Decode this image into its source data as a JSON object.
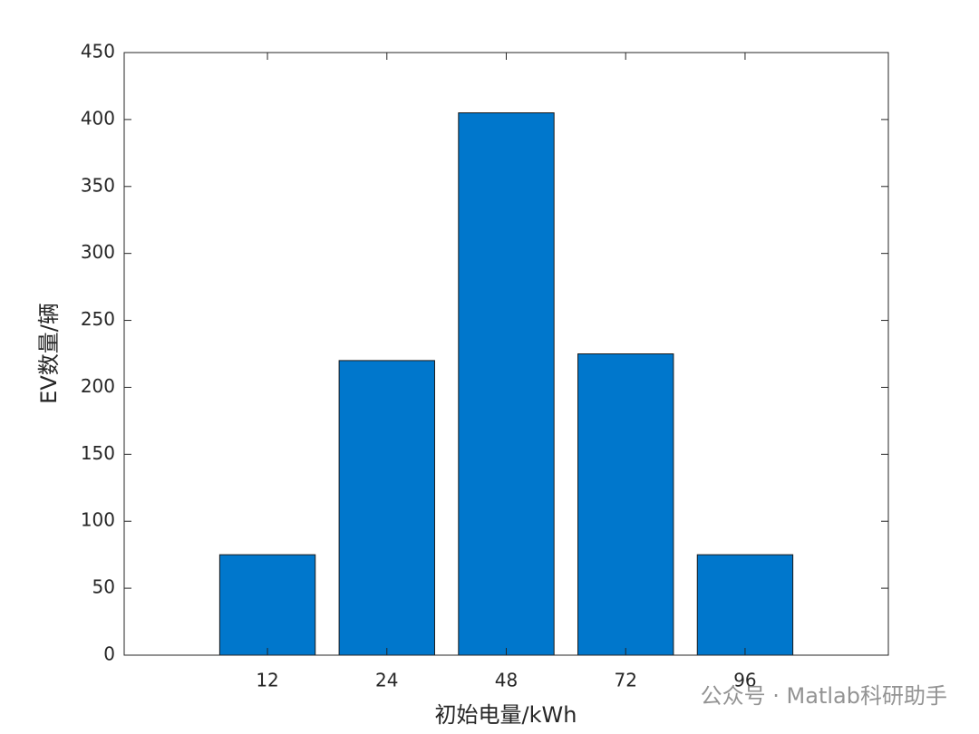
{
  "chart_data": {
    "type": "bar",
    "xlabel": "初始电量/kWh",
    "ylabel": "EV数量/辆",
    "categories": [
      "12",
      "24",
      "48",
      "72",
      "96"
    ],
    "values": [
      75,
      220,
      405,
      225,
      75
    ],
    "color": "#0077cc",
    "ylim": [
      0,
      450
    ],
    "yticks": [
      0,
      50,
      100,
      150,
      200,
      250,
      300,
      350,
      400,
      450
    ],
    "grid": false
  },
  "watermark": "公众号 · Matlab科研助手"
}
